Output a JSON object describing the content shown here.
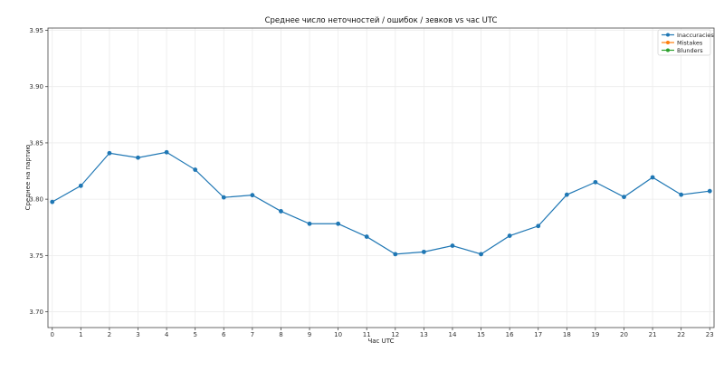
{
  "chart_data": {
    "type": "line",
    "title": "Среднее число неточностей / ошибок / зевков vs час UTC",
    "xlabel": "Час UTC",
    "ylabel": "Среднее на партию",
    "x": [
      0,
      1,
      2,
      3,
      4,
      5,
      6,
      7,
      8,
      9,
      10,
      11,
      12,
      13,
      14,
      15,
      16,
      17,
      18,
      19,
      20,
      21,
      22,
      23
    ],
    "x_tick_labels": [
      "0",
      "1",
      "2",
      "3",
      "4",
      "5",
      "6",
      "7",
      "8",
      "9",
      "10",
      "11",
      "12",
      "13",
      "14",
      "15",
      "16",
      "17",
      "18",
      "19",
      "20",
      "21",
      "22",
      "23"
    ],
    "y_ticks": [
      3.7,
      3.75,
      3.8,
      3.85,
      3.9,
      3.95
    ],
    "y_tick_labels": [
      "3.70",
      "3.75",
      "3.80",
      "3.85",
      "3.90",
      "3.95"
    ],
    "ylim": [
      3.686,
      3.952
    ],
    "xlim": [
      -0.15,
      23.15
    ],
    "grid": true,
    "legend_position": "upper right",
    "series": [
      {
        "name": "Inaccuracies",
        "color": "#1f77b4",
        "marker": "o",
        "values": [
          3.7976,
          3.8119,
          3.8409,
          3.8369,
          3.8417,
          3.8262,
          3.8016,
          3.8036,
          3.7893,
          3.7782,
          3.7782,
          3.7667,
          3.7512,
          3.7532,
          3.7587,
          3.7512,
          3.7675,
          3.7762,
          3.804,
          3.8151,
          3.802,
          3.8194,
          3.804,
          3.8072
        ]
      },
      {
        "name": "Mistakes",
        "color": "#ff7f0e",
        "marker": "o",
        "values": []
      },
      {
        "name": "Blunders",
        "color": "#2ca02c",
        "marker": "o",
        "values": []
      }
    ]
  }
}
